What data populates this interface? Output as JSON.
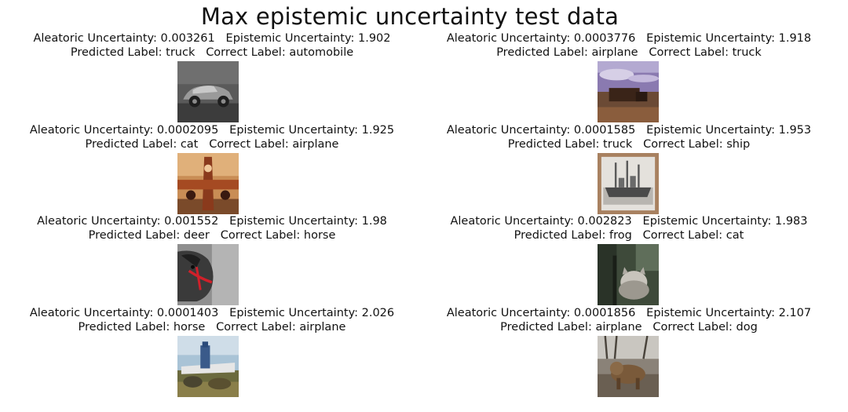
{
  "figure": {
    "title": "Max epistemic uncertainty test data"
  },
  "labels": {
    "aleatoric": "Aleatoric Uncertainty:",
    "epistemic": "Epistemic Uncertainty:",
    "predicted": "Predicted Label:",
    "correct": "Correct Label:"
  },
  "samples": [
    {
      "aleatoric": "0.003261",
      "epistemic": "1.902",
      "predicted": "truck",
      "correct": "automobile",
      "image": "car-photo"
    },
    {
      "aleatoric": "0.0003776",
      "epistemic": "1.918",
      "predicted": "airplane",
      "correct": "truck",
      "image": "truck-dusk-photo"
    },
    {
      "aleatoric": "0.0002095",
      "epistemic": "1.925",
      "predicted": "cat",
      "correct": "airplane",
      "image": "airplane-photo"
    },
    {
      "aleatoric": "0.0001585",
      "epistemic": "1.953",
      "predicted": "truck",
      "correct": "ship",
      "image": "ship-photo"
    },
    {
      "aleatoric": "0.001552",
      "epistemic": "1.98",
      "predicted": "deer",
      "correct": "horse",
      "image": "horse-photo"
    },
    {
      "aleatoric": "0.002823",
      "epistemic": "1.983",
      "predicted": "frog",
      "correct": "cat",
      "image": "cat-photo"
    },
    {
      "aleatoric": "0.0001403",
      "epistemic": "2.026",
      "predicted": "horse",
      "correct": "airplane",
      "image": "airplane-ground-photo"
    },
    {
      "aleatoric": "0.0001856",
      "epistemic": "2.107",
      "predicted": "airplane",
      "correct": "dog",
      "image": "dog-photo"
    }
  ]
}
